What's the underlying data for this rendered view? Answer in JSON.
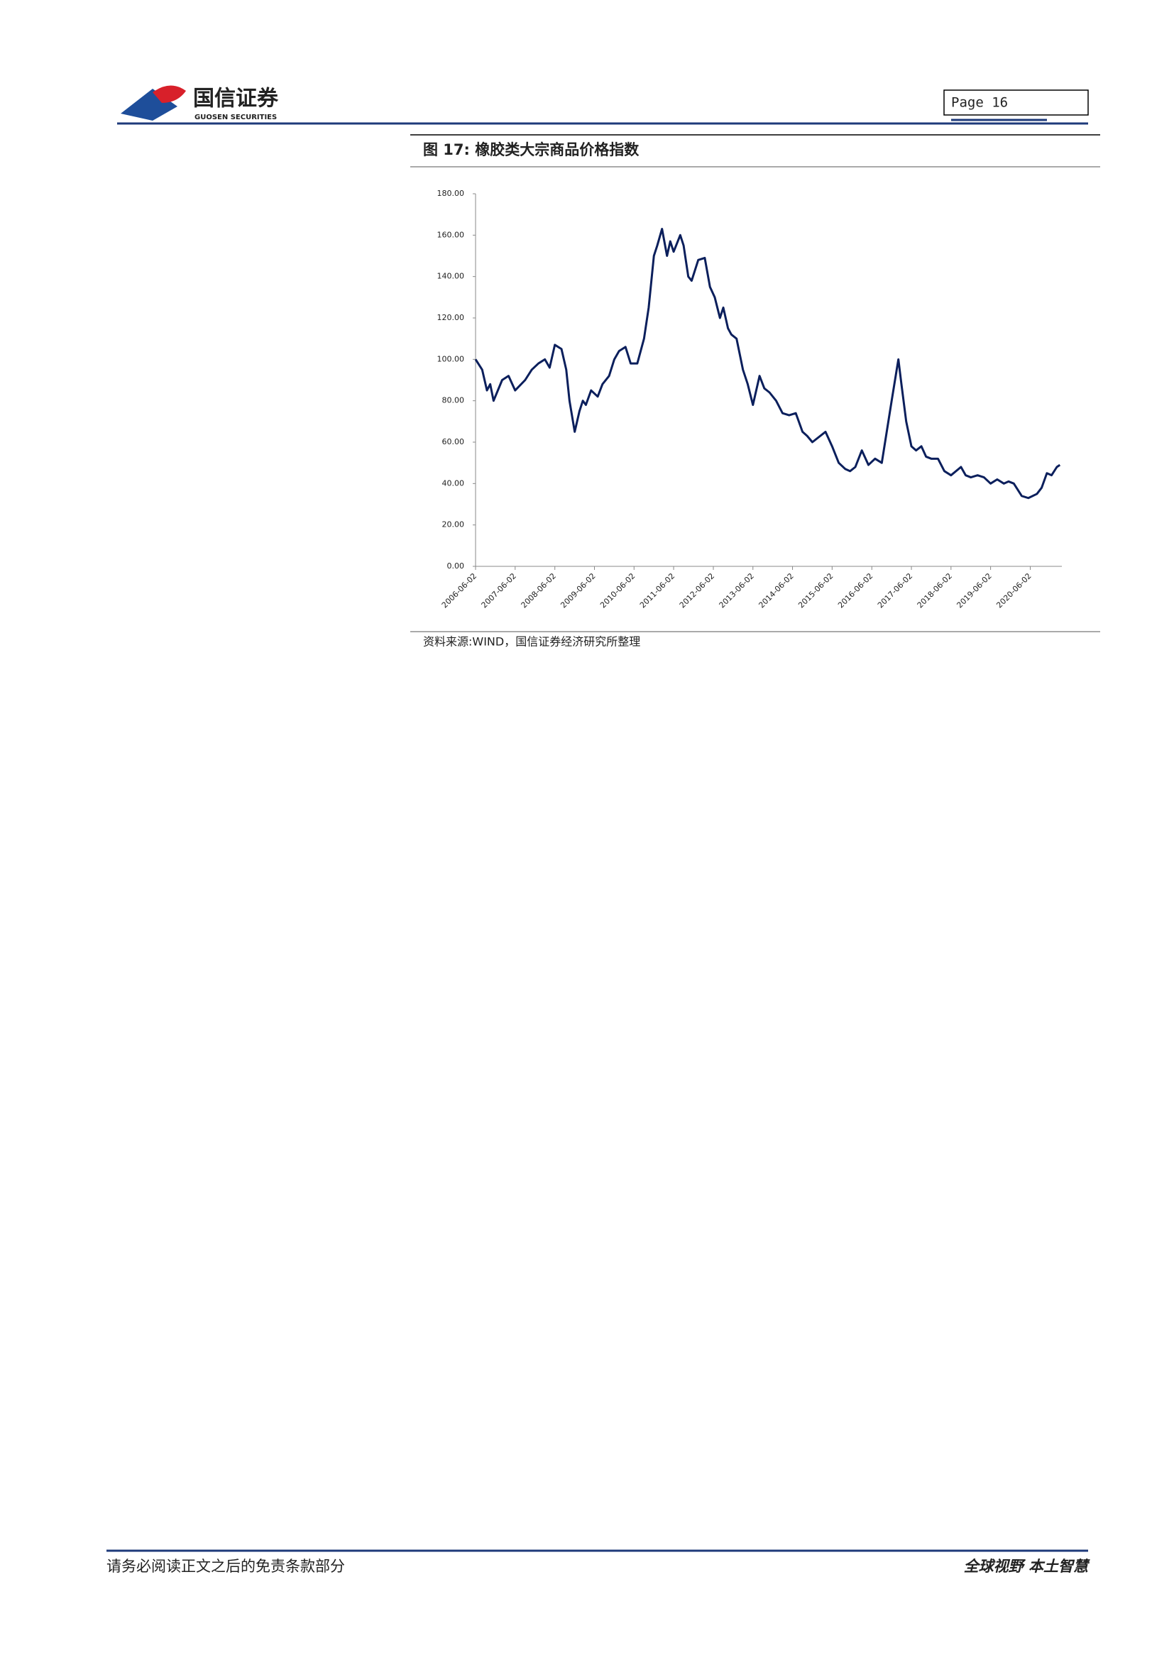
{
  "header": {
    "company": "国信证券",
    "company_en": "GUOSEN SECURITIES",
    "page": "Page  16"
  },
  "figure": {
    "title": "图 17:  橡胶类大宗商品价格指数",
    "source": "资料来源:WIND，国信证券经济研究所整理"
  },
  "chart_data": {
    "type": "line",
    "x": [
      "2006-06-02",
      "2006-08-02",
      "2006-09-15",
      "2006-10-15",
      "2006-11-15",
      "2007-02-02",
      "2007-04-02",
      "2007-06-02",
      "2007-09-02",
      "2007-11-02",
      "2008-01-02",
      "2008-03-02",
      "2008-04-15",
      "2008-06-02",
      "2008-08-02",
      "2008-09-15",
      "2008-10-15",
      "2008-12-02",
      "2009-01-15",
      "2009-02-15",
      "2009-03-15",
      "2009-05-02",
      "2009-07-02",
      "2009-08-15",
      "2009-10-15",
      "2009-12-02",
      "2010-01-15",
      "2010-03-15",
      "2010-05-02",
      "2010-07-02",
      "2010-09-02",
      "2010-10-15",
      "2010-12-02",
      "2011-01-02",
      "2011-02-15",
      "2011-04-02",
      "2011-05-02",
      "2011-06-02",
      "2011-08-02",
      "2011-09-02",
      "2011-10-15",
      "2011-11-15",
      "2012-01-15",
      "2012-03-15",
      "2012-05-02",
      "2012-06-15",
      "2012-08-02",
      "2012-09-02",
      "2012-10-15",
      "2012-11-15",
      "2013-01-02",
      "2013-03-02",
      "2013-04-15",
      "2013-06-02",
      "2013-08-02",
      "2013-09-15",
      "2013-11-02",
      "2014-01-02",
      "2014-03-02",
      "2014-05-02",
      "2014-07-02",
      "2014-09-02",
      "2014-10-15",
      "2014-12-02",
      "2015-04-02",
      "2015-06-02",
      "2015-08-02",
      "2015-10-02",
      "2015-11-15",
      "2016-01-02",
      "2016-03-02",
      "2016-05-02",
      "2016-07-02",
      "2016-09-02",
      "2016-12-02",
      "2017-02-02",
      "2017-03-02",
      "2017-04-15",
      "2017-06-02",
      "2017-07-15",
      "2017-09-02",
      "2017-10-15",
      "2017-12-02",
      "2018-02-02",
      "2018-04-02",
      "2018-06-02",
      "2018-09-02",
      "2018-10-15",
      "2018-12-02",
      "2019-02-02",
      "2019-04-02",
      "2019-06-02",
      "2019-08-02",
      "2019-10-02",
      "2019-11-15",
      "2020-01-02",
      "2020-03-15",
      "2020-05-15",
      "2020-08-02",
      "2020-09-15",
      "2020-11-02",
      "2020-12-15",
      "2021-02-02",
      "2021-03-02"
    ],
    "series": [
      {
        "color": "#0b1f5c",
        "values": [
          100,
          95,
          85,
          88,
          80,
          90,
          92,
          85,
          90,
          95,
          98,
          100,
          96,
          107,
          105,
          95,
          80,
          65,
          75,
          80,
          78,
          85,
          82,
          88,
          92,
          100,
          104,
          106,
          98,
          98,
          110,
          125,
          150,
          155,
          163,
          150,
          157,
          152,
          160,
          155,
          140,
          138,
          148,
          149,
          135,
          130,
          120,
          125,
          115,
          112,
          110,
          95,
          88,
          78,
          92,
          86,
          84,
          80,
          74,
          73,
          74,
          65,
          63,
          60,
          65,
          58,
          50,
          47,
          46,
          48,
          56,
          49,
          52,
          50,
          80,
          100,
          88,
          70,
          58,
          56,
          58,
          53,
          52,
          52,
          46,
          44,
          48,
          44,
          43,
          44,
          43,
          40,
          42,
          40,
          41,
          40,
          34,
          33,
          35,
          38,
          45,
          44,
          48,
          49
        ]
      }
    ],
    "xlim": [
      "2006-06-02",
      "2021-03-20"
    ],
    "xticks": [
      "2006-06-02",
      "2007-06-02",
      "2008-06-02",
      "2009-06-02",
      "2010-06-02",
      "2011-06-02",
      "2012-06-02",
      "2013-06-02",
      "2014-06-02",
      "2015-06-02",
      "2016-06-02",
      "2017-06-02",
      "2018-06-02",
      "2019-06-02",
      "2020-06-02"
    ],
    "ylim": [
      0,
      180
    ],
    "yticks": [
      {
        "value": 0,
        "label": "0.00"
      },
      {
        "value": 20,
        "label": "20.00"
      },
      {
        "value": 40,
        "label": "40.00"
      },
      {
        "value": 60,
        "label": "60.00"
      },
      {
        "value": 80,
        "label": "80.00"
      },
      {
        "value": 100,
        "label": "100.00"
      },
      {
        "value": 120,
        "label": "120.00"
      },
      {
        "value": 140,
        "label": "140.00"
      },
      {
        "value": 160,
        "label": "160.00"
      },
      {
        "value": 180,
        "label": "180.00"
      }
    ]
  },
  "footer": {
    "left": "请务必阅读正文之后的免责条款部分",
    "right": "全球视野   本土智慧"
  }
}
